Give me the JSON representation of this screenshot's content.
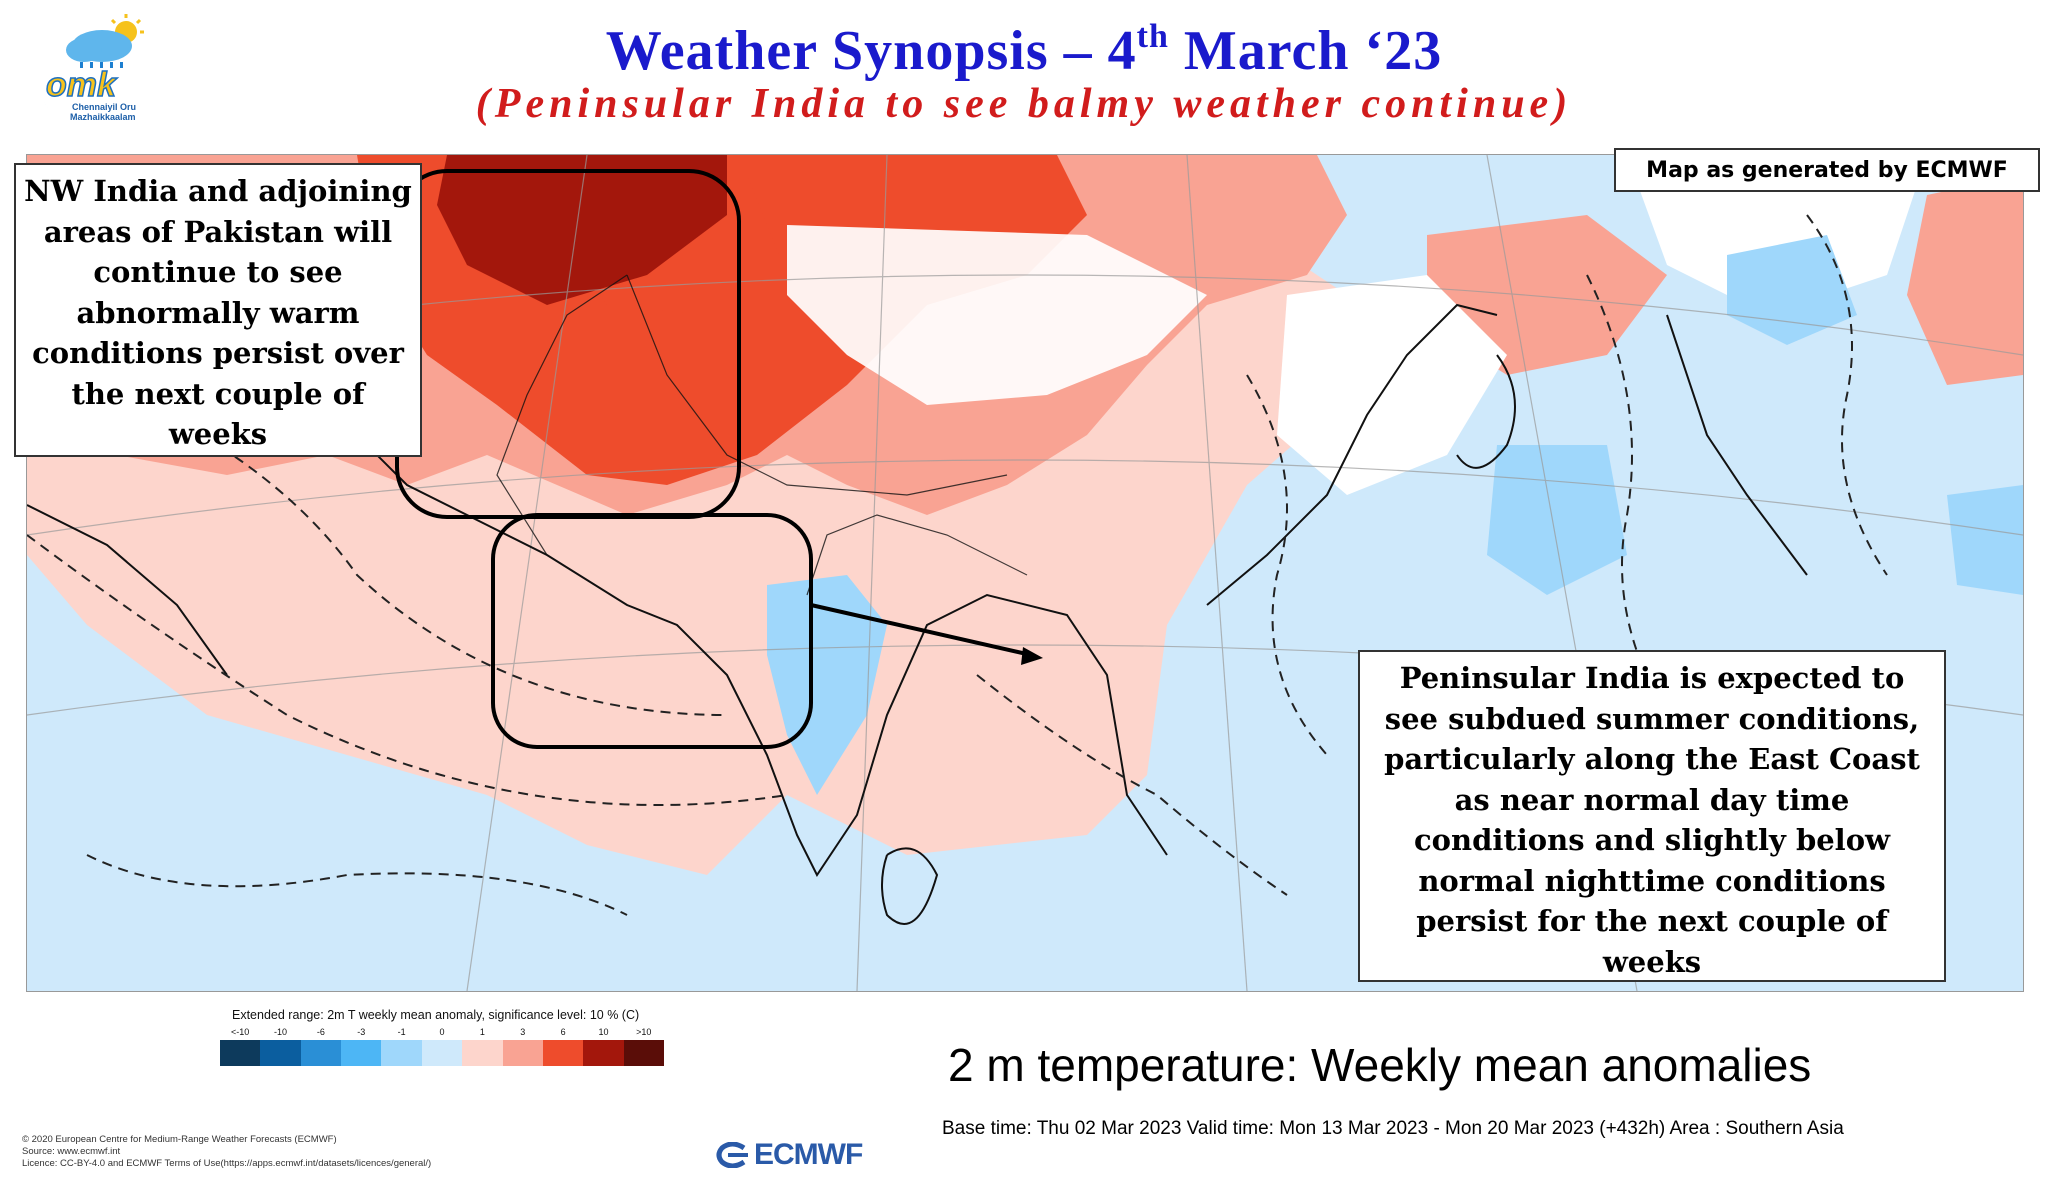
{
  "header": {
    "title_main": "Weather Synopsis – 4",
    "title_sup": "th",
    "title_end": " March ‘23",
    "subtitle": "(Peninsular India to see balmy weather continue)"
  },
  "logo": {
    "wordmark": "omk",
    "tagline_1": "Chennaiyil Oru",
    "tagline_2": "Mazhaikkaalam"
  },
  "map": {
    "source_label": "Map as generated by ECMWF",
    "callout_nw": [
      "NW India and adjoining",
      "areas of Pakistan will",
      "continue to see",
      "abnormally warm",
      "conditions persist over",
      "the next couple of",
      "weeks"
    ],
    "callout_peninsula": [
      "Peninsular India is expected to",
      "see subdued summer conditions,",
      "particularly along the East Coast",
      "as near normal day time",
      "conditions and slightly below",
      "normal nighttime conditions",
      "persist for the next couple of",
      "weeks"
    ],
    "colors": {
      "strong_warm": "#a3170c",
      "warm": "#ee4c2c",
      "mild_warm": "#f9a393",
      "slight_warm": "#fdd5cc",
      "neutral": "#ffffff",
      "slight_cool": "#cfe9fb",
      "cool": "#9fd7fb",
      "land_line": "#111111"
    }
  },
  "legend": {
    "title": "Extended range: 2m T weekly mean anomaly, significance level: 10 % (C)",
    "ticks": [
      "<-10",
      "-10",
      "-6",
      "-3",
      "-1",
      "0",
      "1",
      "3",
      "6",
      "10",
      ">10"
    ],
    "colors": [
      "#0d3a5c",
      "#0b5e9f",
      "#2a8fd6",
      "#4db6f5",
      "#9fd7fb",
      "#cfe9fb",
      "#fdd5cc",
      "#f9a393",
      "#ee4c2c",
      "#a3170c",
      "#5a0d08"
    ]
  },
  "footer": {
    "chart_title": "2 m temperature: Weekly mean anomalies",
    "base_time": "Base time: Thu 02 Mar 2023 Valid time: Mon 13 Mar 2023 - Mon 20 Mar 2023 (+432h) Area : Southern Asia",
    "copyright_1": "© 2020 European Centre for Medium-Range Weather Forecasts (ECMWF)",
    "copyright_2": "Source: www.ecmwf.int",
    "copyright_3": "Licence: CC-BY-4.0 and ECMWF Terms of Use(https://apps.ecmwf.int/datasets/licences/general/)",
    "ecmwf_logo": "ECMWF"
  }
}
